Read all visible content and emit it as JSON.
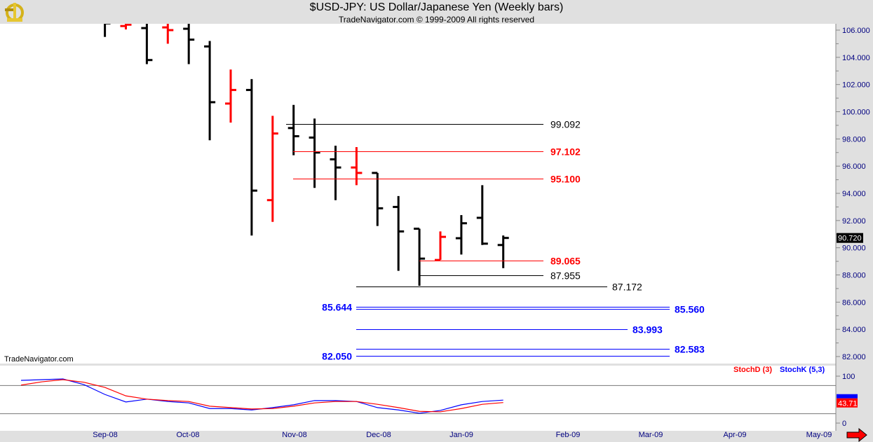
{
  "header": {
    "title": "$USD-JPY:  US Dollar/Japanese Yen  (Weekly bars)",
    "subtitle": "TradeNavigator.com © 1999-2009 All rights reserved"
  },
  "watermark": "TradeNavigator.com",
  "icons": {
    "logo": "sextant-icon",
    "scroll": "right-arrow-icon"
  },
  "colors": {
    "up": "#000000",
    "down": "#ff0000",
    "stochD": "#ff0000",
    "stochK": "#0000ff",
    "fib": "#0000ff"
  },
  "chart_data": [
    {
      "type": "ohlc",
      "title": "$USD-JPY Weekly bars",
      "ylim": [
        81.5,
        106.5
      ],
      "y_ticks": [
        "106.000",
        "104.000",
        "102.000",
        "100.000",
        "98.000",
        "96.000",
        "94.000",
        "92.000",
        "90.000",
        "88.000",
        "86.000",
        "84.000",
        "82.000"
      ],
      "x_ticks": [
        "Sep-08",
        "Oct-08",
        "Nov-08",
        "Dec-08",
        "Jan-09",
        "Feb-09",
        "Mar-09",
        "Apr-09",
        "May-09"
      ],
      "last_price": "90.720",
      "bars": [
        {
          "o": 107.0,
          "h": 107.5,
          "l": 105.5,
          "c": 106.5,
          "dir": "up"
        },
        {
          "o": 106.3,
          "h": 106.6,
          "l": 106.05,
          "c": 106.4,
          "dir": "down"
        },
        {
          "o": 106.15,
          "h": 106.6,
          "l": 103.5,
          "c": 103.8,
          "dir": "up"
        },
        {
          "o": 106.2,
          "h": 106.6,
          "l": 105.0,
          "c": 106.0,
          "dir": "down"
        },
        {
          "o": 106.1,
          "h": 106.6,
          "l": 103.5,
          "c": 105.3,
          "dir": "up"
        },
        {
          "o": 104.8,
          "h": 105.2,
          "l": 97.9,
          "c": 100.7,
          "dir": "up"
        },
        {
          "o": 100.6,
          "h": 103.1,
          "l": 99.2,
          "c": 101.6,
          "dir": "down"
        },
        {
          "o": 101.6,
          "h": 102.4,
          "l": 90.9,
          "c": 94.2,
          "dir": "up"
        },
        {
          "o": 93.5,
          "h": 99.7,
          "l": 91.9,
          "c": 98.4,
          "dir": "down"
        },
        {
          "o": 98.8,
          "h": 100.5,
          "l": 96.8,
          "c": 98.2,
          "dir": "up"
        },
        {
          "o": 98.1,
          "h": 99.5,
          "l": 94.4,
          "c": 97.0,
          "dir": "up"
        },
        {
          "o": 96.5,
          "h": 97.5,
          "l": 93.5,
          "c": 95.9,
          "dir": "up"
        },
        {
          "o": 95.9,
          "h": 97.4,
          "l": 94.6,
          "c": 95.5,
          "dir": "down"
        },
        {
          "o": 95.5,
          "h": 95.5,
          "l": 91.6,
          "c": 92.9,
          "dir": "up"
        },
        {
          "o": 93.0,
          "h": 93.8,
          "l": 88.3,
          "c": 91.2,
          "dir": "up"
        },
        {
          "o": 91.4,
          "h": 91.4,
          "l": 87.2,
          "c": 89.2,
          "dir": "up"
        },
        {
          "o": 89.1,
          "h": 91.2,
          "l": 89.1,
          "c": 90.8,
          "dir": "down"
        },
        {
          "o": 90.7,
          "h": 92.4,
          "l": 89.5,
          "c": 91.8,
          "dir": "up"
        },
        {
          "o": 92.2,
          "h": 94.6,
          "l": 90.2,
          "c": 90.3,
          "dir": "up"
        },
        {
          "o": 90.2,
          "h": 90.9,
          "l": 88.5,
          "c": 90.72,
          "dir": "up"
        }
      ],
      "levels": [
        {
          "value": 99.092,
          "label": "99.092",
          "color": "#000000"
        },
        {
          "value": 97.102,
          "label": "97.102",
          "color": "#ff0000"
        },
        {
          "value": 95.1,
          "label": "95.100",
          "color": "#ff0000"
        },
        {
          "value": 89.065,
          "label": "89.065",
          "color": "#ff0000"
        },
        {
          "value": 87.955,
          "label": "87.955",
          "color": "#000000"
        },
        {
          "value": 87.172,
          "label": "87.172",
          "color": "#000000"
        },
        {
          "value": 85.644,
          "label": "85.644",
          "color": "#0000ff"
        },
        {
          "value": 85.56,
          "label": "85.560",
          "color": "#0000ff"
        },
        {
          "value": 83.993,
          "label": "83.993",
          "color": "#0000ff"
        },
        {
          "value": 82.583,
          "label": "82.583",
          "color": "#0000ff"
        },
        {
          "value": 82.05,
          "label": "82.050",
          "color": "#0000ff"
        }
      ]
    },
    {
      "type": "line",
      "title": "Stochastic",
      "ylim": [
        0,
        100
      ],
      "y_ticks": [
        "100",
        "0"
      ],
      "guides": [
        80,
        20
      ],
      "legend": [
        {
          "name": "StochD (3)",
          "color": "#ff0000"
        },
        {
          "name": "StochK (5,3)",
          "color": "#0000ff"
        }
      ],
      "last_D": "43.71",
      "series": [
        {
          "name": "StochK (5,3)",
          "values": [
            91,
            92.5,
            94,
            82,
            61,
            45,
            51,
            46,
            43,
            31,
            31,
            28,
            33,
            39,
            48,
            48,
            46,
            33,
            28,
            21,
            27,
            39,
            46,
            49
          ]
        },
        {
          "name": "StochD (3)",
          "values": [
            81,
            88,
            92.5,
            87,
            76,
            58,
            51,
            48,
            46,
            36,
            33,
            30,
            31,
            36,
            43,
            46,
            46,
            40,
            33,
            25,
            24,
            31,
            40,
            43.71
          ]
        }
      ]
    }
  ]
}
